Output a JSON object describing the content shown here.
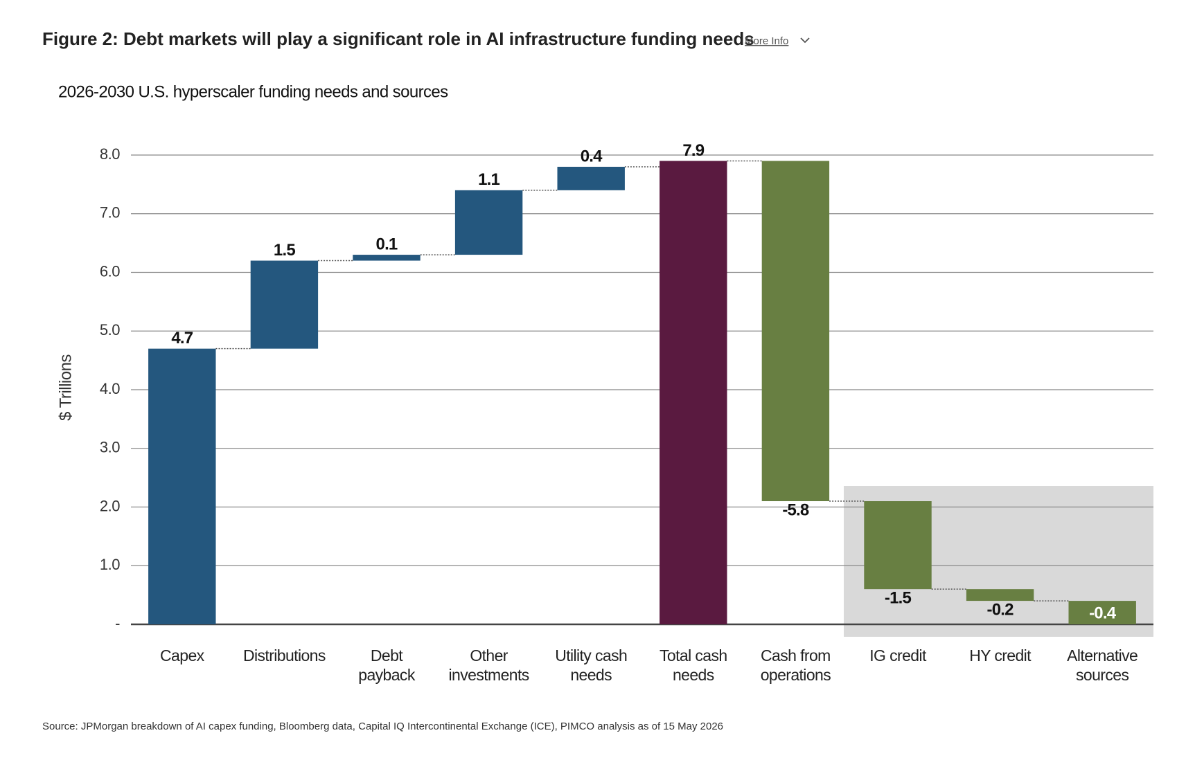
{
  "chart_data": {
    "type": "waterfall",
    "title": "Figure 2: Debt markets will play a significant role in AI infrastructure funding needs",
    "more_info": "More Info",
    "subtitle": "2026-2030 U.S. hyperscaler funding needs and sources",
    "y_label": "$ Trillions",
    "categories": [
      [
        "Capex"
      ],
      [
        "Distributions"
      ],
      [
        "Debt",
        "payback"
      ],
      [
        "Other",
        "investments"
      ],
      [
        "Utility cash",
        "needs"
      ],
      [
        "Total cash",
        "needs"
      ],
      [
        "Cash from",
        "operations"
      ],
      [
        "IG credit"
      ],
      [
        "HY credit"
      ],
      [
        "Alternative",
        "sources"
      ]
    ],
    "values": [
      4.7,
      1.5,
      0.1,
      1.1,
      0.4,
      7.9,
      -5.8,
      -1.5,
      -0.2,
      -0.4
    ],
    "total_indices": [
      5
    ],
    "colors": [
      "#24577e",
      "#24577e",
      "#24577e",
      "#24577e",
      "#24577e",
      "#5a1a40",
      "#687f42",
      "#687f42",
      "#687f42",
      "#687f42"
    ],
    "ylim": [
      0,
      8
    ],
    "yticks": [
      {
        "value": 0,
        "label": "-"
      },
      {
        "value": 1,
        "label": "1.0"
      },
      {
        "value": 2,
        "label": "2.0"
      },
      {
        "value": 3,
        "label": "3.0"
      },
      {
        "value": 4,
        "label": "4.0"
      },
      {
        "value": 5,
        "label": "5.0"
      },
      {
        "value": 6,
        "label": "6.0"
      },
      {
        "value": 7,
        "label": "7.0"
      },
      {
        "value": 8,
        "label": "8.0"
      }
    ],
    "grid": true,
    "source": "Source: JPMorgan breakdown of AI capex funding, Bloomberg data, Capital IQ Intercontinental Exchange (ICE), PIMCO analysis as of 15 May 2026"
  }
}
